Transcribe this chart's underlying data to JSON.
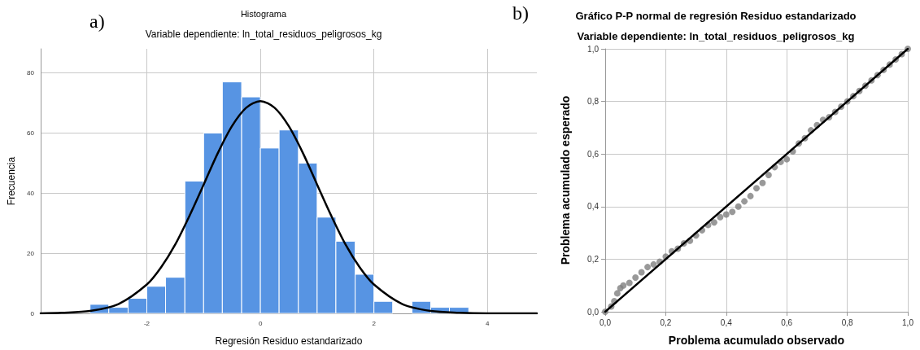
{
  "chart_data": [
    {
      "type": "histogram",
      "title": "Histograma",
      "subtitle": "Variable dependiente: ln_total_residuos_peligrosos_kg",
      "xlabel": "Regresión Residuo estandarizado",
      "ylabel": "Frecuencia",
      "annotations": [
        "a)"
      ],
      "bins": [
        -3,
        -2.67,
        -2.33,
        -2,
        -1.67,
        -1.33,
        -1,
        -0.67,
        -0.33,
        0,
        0.33,
        0.67,
        1,
        1.33,
        1.67,
        2,
        2.33,
        2.67,
        3,
        3.33,
        3.67
      ],
      "series": [
        {
          "type": "histogram",
          "color": "#5794e3",
          "values": [
            3,
            2,
            5,
            9,
            12,
            44,
            60,
            77,
            72,
            55,
            61,
            50,
            32,
            24,
            13,
            4,
            0,
            4,
            2,
            2
          ]
        },
        {
          "type": "line",
          "color": "#000000",
          "x": [
            -3.87,
            -3.5,
            -3,
            -2.5,
            -2,
            -1.75,
            -1.5,
            -1.25,
            -1,
            -0.75,
            -0.5,
            -0.25,
            0,
            0.25,
            0.5,
            0.75,
            1,
            1.25,
            1.5,
            1.75,
            2,
            2.5,
            3,
            3.5,
            4,
            4.5,
            4.87
          ],
          "values": [
            0,
            0.2,
            0.8,
            3.1,
            9.6,
            15.3,
            22.9,
            32.4,
            42.8,
            53.3,
            62.3,
            68.4,
            70.6,
            68.4,
            62.3,
            53.3,
            42.8,
            32.4,
            22.9,
            15.3,
            9.6,
            3.1,
            0.8,
            0.2,
            0,
            0,
            0
          ]
        }
      ],
      "xlim": [
        -3.87,
        4.87
      ],
      "xticks": [
        -2,
        0,
        2,
        4
      ],
      "ylim": [
        0,
        88
      ],
      "yticks": [
        0,
        20,
        40,
        60,
        80
      ],
      "grid": true
    },
    {
      "type": "scatter",
      "title": "Gráfico P-P normal de regresión Residuo estandarizado",
      "subtitle": "Variable dependiente: ln_total_residuos_peligrosos_kg",
      "xlabel": "Problema acumulado observado",
      "ylabel": "Problema acumulado esperado",
      "annotations": [
        "b)"
      ],
      "series": [
        {
          "type": "scatter",
          "color": "#808080",
          "marker": "circle",
          "x": [
            0,
            0.01,
            0.02,
            0.03,
            0.04,
            0.05,
            0.06,
            0.08,
            0.1,
            0.12,
            0.14,
            0.16,
            0.18,
            0.2,
            0.22,
            0.24,
            0.26,
            0.28,
            0.3,
            0.32,
            0.34,
            0.36,
            0.38,
            0.4,
            0.42,
            0.44,
            0.46,
            0.48,
            0.5,
            0.52,
            0.54,
            0.56,
            0.58,
            0.6,
            0.62,
            0.64,
            0.66,
            0.68,
            0.7,
            0.72,
            0.74,
            0.76,
            0.78,
            0.8,
            0.82,
            0.84,
            0.86,
            0.88,
            0.9,
            0.92,
            0.94,
            0.96,
            0.98,
            1
          ],
          "values": [
            0,
            null,
            0.02,
            0.04,
            0.07,
            0.09,
            0.1,
            0.11,
            0.13,
            0.15,
            0.17,
            0.18,
            0.19,
            0.21,
            0.23,
            0.24,
            0.26,
            0.27,
            0.29,
            0.31,
            0.33,
            0.34,
            0.36,
            0.37,
            0.38,
            0.4,
            0.42,
            0.44,
            0.47,
            0.49,
            0.52,
            0.55,
            0.57,
            0.58,
            0.61,
            0.64,
            0.66,
            0.69,
            0.71,
            0.73,
            0.74,
            0.76,
            0.78,
            0.8,
            0.82,
            0.84,
            0.86,
            0.88,
            0.9,
            0.92,
            0.94,
            0.96,
            0.98,
            1
          ]
        },
        {
          "type": "line",
          "color": "#000000",
          "x": [
            0,
            1
          ],
          "values": [
            0,
            1
          ]
        }
      ],
      "xlim": [
        0,
        1
      ],
      "xticks": [
        {
          "value": 0,
          "label": "0,0"
        },
        {
          "value": 0.2,
          "label": "0,2"
        },
        {
          "value": 0.4,
          "label": "0,4"
        },
        {
          "value": 0.6,
          "label": "0,6"
        },
        {
          "value": 0.8,
          "label": "0,8"
        },
        {
          "value": 1,
          "label": "1,0"
        }
      ],
      "ylim": [
        0,
        1
      ],
      "yticks": [
        {
          "value": 0,
          "label": "0,0"
        },
        {
          "value": 0.2,
          "label": "0,2"
        },
        {
          "value": 0.4,
          "label": "0,4"
        },
        {
          "value": 0.6,
          "label": "0,6"
        },
        {
          "value": 0.8,
          "label": "0,8"
        },
        {
          "value": 1,
          "label": "1,0"
        }
      ],
      "grid": true
    }
  ]
}
